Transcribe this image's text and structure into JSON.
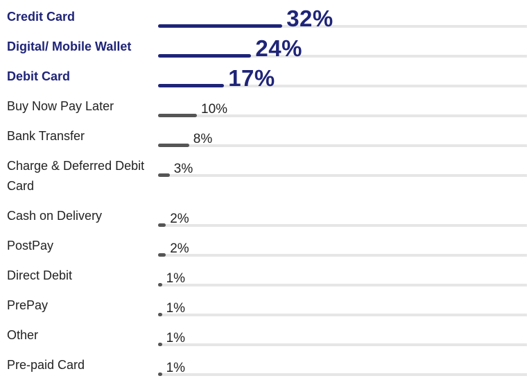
{
  "chart_data": {
    "type": "bar",
    "categories": [
      "Credit Card",
      "Digital/ Mobile Wallet",
      "Debit Card",
      "Buy Now Pay Later",
      "Bank Transfer",
      "Charge & Deferred Debit Card",
      "Cash on Delivery",
      "PostPay",
      "Direct Debit",
      "PrePay",
      "Other",
      "Pre-paid Card"
    ],
    "values": [
      32,
      24,
      17,
      10,
      8,
      3,
      2,
      2,
      1,
      1,
      1,
      1
    ],
    "value_labels": [
      "32%",
      "24%",
      "17%",
      "10%",
      "8%",
      "3%",
      "2%",
      "2%",
      "1%",
      "1%",
      "1%",
      "1%"
    ],
    "colors": [
      "#1f2478",
      "#1f2478",
      "#1f2478",
      "#555555",
      "#555555",
      "#555555",
      "#555555",
      "#555555",
      "#555555",
      "#555555",
      "#555555",
      "#555555"
    ],
    "highlight_color": "#1f2478",
    "track_color": "#e6e6e6"
  }
}
